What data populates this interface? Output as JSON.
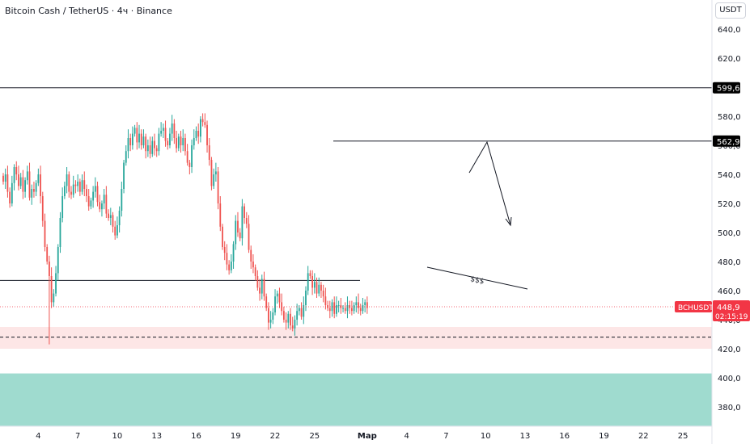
{
  "header": {
    "title": "Bitcoin Cash / TetherUS · 4ч · Binance",
    "currency": "USDT"
  },
  "chart_data": {
    "type": "candlestick",
    "symbol": "BCHUSDT",
    "y_range": [
      367,
      648
    ],
    "y_ticks": [
      380,
      400,
      420,
      440,
      460,
      480,
      500,
      520,
      540,
      560,
      580,
      600,
      620,
      640
    ],
    "y_tick_labels": [
      "380,0",
      "400,0",
      "420,0",
      "440,0",
      "460,0",
      "480,0",
      "500,0",
      "520,0",
      "540,0",
      "560,0",
      "580,0",
      "600,0",
      "620,0",
      "640,0"
    ],
    "x_ticks": [
      {
        "label": "4",
        "bar": 16
      },
      {
        "label": "7",
        "bar": 34
      },
      {
        "label": "10",
        "bar": 52
      },
      {
        "label": "13",
        "bar": 70
      },
      {
        "label": "16",
        "bar": 88
      },
      {
        "label": "19",
        "bar": 106
      },
      {
        "label": "22",
        "bar": 124
      },
      {
        "label": "25",
        "bar": 142
      },
      {
        "label": "Мар",
        "bar": 166
      },
      {
        "label": "4",
        "bar": 184
      },
      {
        "label": "7",
        "bar": 202
      },
      {
        "label": "10",
        "bar": 220
      },
      {
        "label": "13",
        "bar": 238
      },
      {
        "label": "16",
        "bar": 256
      },
      {
        "label": "19",
        "bar": 274
      },
      {
        "label": "22",
        "bar": 292
      },
      {
        "label": "25",
        "bar": 310
      }
    ],
    "candles_close": [
      535,
      540,
      528,
      520,
      534,
      545,
      540,
      532,
      538,
      528,
      536,
      542,
      524,
      530,
      528,
      534,
      540,
      525,
      508,
      490,
      480,
      470,
      452,
      458,
      472,
      490,
      510,
      525,
      532,
      540,
      528,
      526,
      533,
      532,
      535,
      528,
      536,
      530,
      525,
      518,
      522,
      528,
      532,
      521,
      516,
      520,
      526,
      513,
      510,
      512,
      504,
      498,
      505,
      515,
      530,
      548,
      556,
      565,
      560,
      568,
      572,
      562,
      568,
      560,
      566,
      556,
      560,
      554,
      563,
      558,
      556,
      568,
      570,
      572,
      563,
      560,
      568,
      575,
      565,
      558,
      566,
      560,
      565,
      556,
      548,
      545,
      560,
      565,
      570,
      566,
      578,
      576,
      574,
      560,
      550,
      532,
      540,
      542,
      520,
      504,
      490,
      486,
      478,
      474,
      480,
      492,
      508,
      500,
      496,
      518,
      510,
      506,
      488,
      480,
      476,
      470,
      462,
      458,
      468,
      456,
      448,
      438,
      440,
      445,
      456,
      458,
      452,
      446,
      440,
      438,
      444,
      436,
      434,
      440,
      446,
      448,
      442,
      450,
      460,
      472,
      470,
      462,
      466,
      458,
      464,
      460,
      456,
      450,
      448,
      446,
      452,
      444,
      450,
      450,
      448,
      448,
      446,
      450,
      448,
      446,
      450,
      452,
      448,
      446,
      450,
      452,
      448
    ],
    "levels": [
      {
        "label": "599,6",
        "value": 599.6
      },
      {
        "label": "562,9",
        "value": 562.9
      },
      {
        "label": "467",
        "value": 467
      }
    ],
    "current_price": {
      "symbol": "BCHUSDT",
      "value": "448,9",
      "timer": "02:15:19",
      "price": 448.9
    },
    "annotations": {
      "liquidity_label": "$$$",
      "dashed_level": 428,
      "zone_sell": [
        420,
        435
      ],
      "zone_buy": [
        367,
        403
      ]
    },
    "colors": {
      "up": "#26a69a",
      "down": "#ef5350",
      "zone_sell": "#fde6e6",
      "zone_buy": "#9fdbcf",
      "price_tag": "#f23645"
    }
  }
}
